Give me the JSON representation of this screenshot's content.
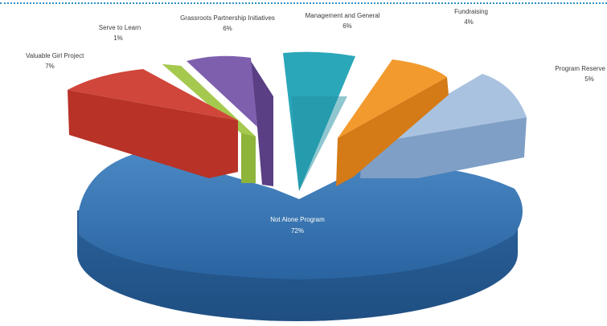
{
  "chart_data": {
    "type": "pie",
    "title": "",
    "slices": [
      {
        "label": "Not Alone Program",
        "value_label": "72%",
        "value": 72,
        "color": "#2e6fad"
      },
      {
        "label": "Program Reserve",
        "value_label": "5%",
        "value": 5,
        "color": "#93b3d6"
      },
      {
        "label": "Fundraising",
        "value_label": "4%",
        "value": 4,
        "color": "#e88a1d"
      },
      {
        "label": "Management and General",
        "value_label": "6%",
        "value": 6,
        "color": "#2aa7b9"
      },
      {
        "label": "Grassroots Partnership Initiatives",
        "value_label": "6%",
        "value": 6,
        "color": "#6e4f9e"
      },
      {
        "label": "Serve to Learn",
        "value_label": "1%",
        "value": 1,
        "color": "#8fb43a"
      },
      {
        "label": "Valuable Girl Project",
        "value_label": "7%",
        "value": 7,
        "color": "#c0392b"
      }
    ]
  }
}
